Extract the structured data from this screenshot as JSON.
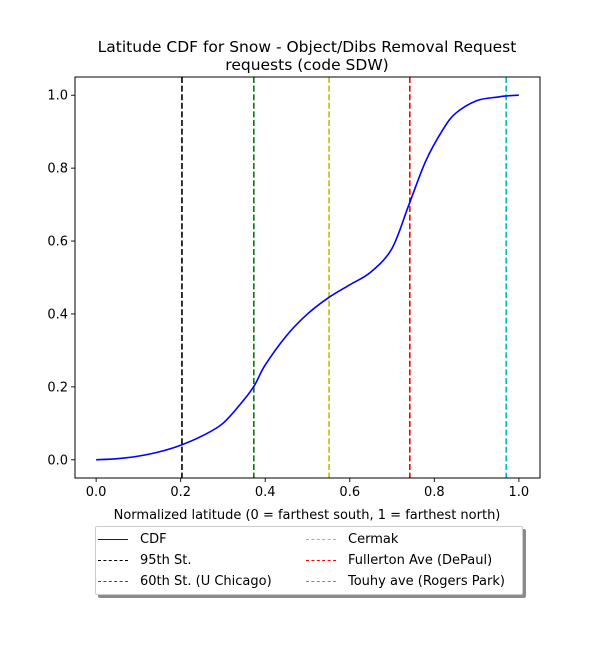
{
  "chart_data": {
    "type": "line",
    "title": "Latitude CDF for Snow - Object/Dibs Removal Request",
    "subtitle": "requests (code SDW)",
    "xlabel": "Normalized latitude (0 = farthest south, 1 = farthest north)",
    "ylabel": "",
    "xlim": [
      -0.05,
      1.05
    ],
    "ylim": [
      -0.05,
      1.05
    ],
    "xticks": [
      "0.0",
      "0.2",
      "0.4",
      "0.6",
      "0.8",
      "1.0"
    ],
    "yticks": [
      "0.0",
      "0.2",
      "0.4",
      "0.6",
      "0.8",
      "1.0"
    ],
    "grid": false,
    "legend_position": "below",
    "series": [
      {
        "name": "CDF",
        "color": "#0000ff",
        "style": "solid",
        "x": [
          0.0,
          0.05,
          0.1,
          0.15,
          0.2,
          0.25,
          0.3,
          0.35,
          0.375,
          0.4,
          0.45,
          0.5,
          0.55,
          0.6,
          0.65,
          0.7,
          0.74,
          0.78,
          0.82,
          0.85,
          0.9,
          0.95,
          0.97,
          1.0
        ],
        "y": [
          0.0,
          0.003,
          0.01,
          0.022,
          0.04,
          0.065,
          0.1,
          0.165,
          0.205,
          0.26,
          0.34,
          0.4,
          0.445,
          0.48,
          0.515,
          0.58,
          0.7,
          0.82,
          0.905,
          0.95,
          0.985,
          0.995,
          0.998,
          1.0
        ]
      }
    ],
    "vlines": [
      {
        "name": "95th St.",
        "x": 0.203,
        "color": "#000000"
      },
      {
        "name": "60th St. (U Chicago)",
        "x": 0.373,
        "color": "#008000"
      },
      {
        "name": "Cermak",
        "x": 0.551,
        "color": "#bfbf00"
      },
      {
        "name": "Fullerton Ave (DePaul)",
        "x": 0.742,
        "color": "#ff0000"
      },
      {
        "name": "Touhy ave (Rogers Park)",
        "x": 0.97,
        "color": "#00bfbf"
      }
    ]
  }
}
